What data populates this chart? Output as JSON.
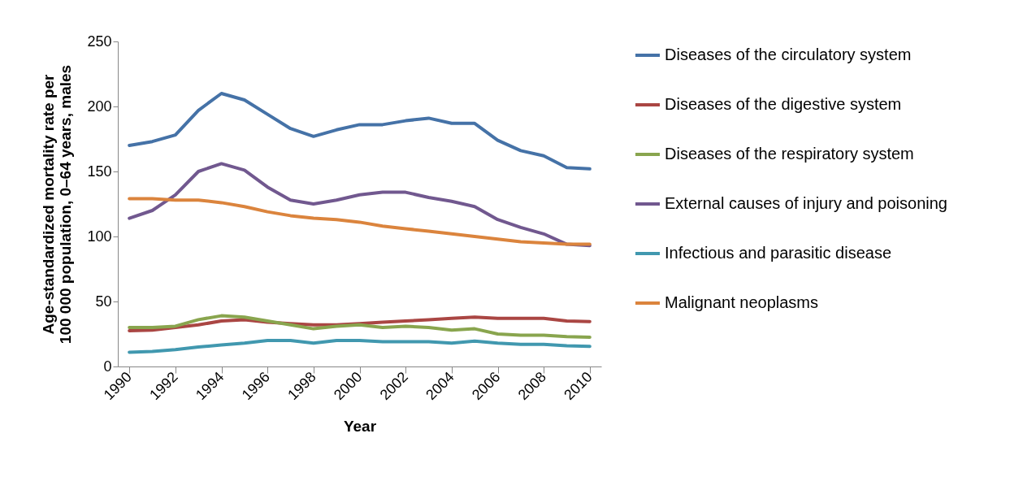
{
  "chart_data": {
    "type": "line",
    "xlabel": "Year",
    "ylabel": "Age-standardized mortality rate per 100 000 population, 0–64 years, males",
    "x": [
      1990,
      1991,
      1992,
      1993,
      1994,
      1995,
      1996,
      1997,
      1998,
      1999,
      2000,
      2001,
      2002,
      2003,
      2004,
      2005,
      2006,
      2007,
      2008,
      2009,
      2010
    ],
    "xlim": [
      1989.5,
      2010.5
    ],
    "xticks": [
      1990,
      1992,
      1994,
      1996,
      1998,
      2000,
      2002,
      2004,
      2006,
      2008,
      2010
    ],
    "ylim": [
      0,
      250
    ],
    "yticks": [
      0,
      50,
      100,
      150,
      200,
      250
    ],
    "grid": false,
    "legend": "right",
    "marker": "none",
    "line_style": "solid",
    "series": [
      {
        "name": "Diseases of the circulatory system",
        "color": "#4572a7",
        "values": [
          170,
          173,
          178,
          197,
          210,
          205,
          194,
          183,
          177,
          182,
          186,
          186,
          189,
          191,
          187,
          187,
          174,
          166,
          162,
          153,
          152
        ]
      },
      {
        "name": "Diseases of the digestive system",
        "color": "#aa4643",
        "values": [
          27.5,
          28,
          30,
          32,
          35,
          36,
          34,
          33,
          32,
          32,
          33,
          34,
          35,
          36,
          37,
          38,
          37,
          37,
          37,
          35,
          34.5
        ]
      },
      {
        "name": "Diseases of the respiratory system",
        "color": "#89a54e",
        "values": [
          30,
          30,
          31,
          36,
          39,
          38,
          35,
          32,
          29,
          31,
          32,
          30,
          31,
          30,
          28,
          29,
          25,
          24,
          24,
          23,
          22.5
        ]
      },
      {
        "name": "External causes of injury and poisoning",
        "color": "#71588f",
        "values": [
          114,
          120,
          132,
          150,
          156,
          151,
          138,
          128,
          125,
          128,
          132,
          134,
          134,
          130,
          127,
          123,
          113,
          107,
          102,
          94,
          93
        ]
      },
      {
        "name": "Infectious and parasitic disease",
        "color": "#4198af",
        "values": [
          11,
          11.5,
          13,
          15,
          16.5,
          18,
          20,
          20,
          18,
          20,
          20,
          19,
          19,
          19,
          18,
          19.5,
          18,
          17,
          17,
          16,
          15.5
        ]
      },
      {
        "name": "Malignant neoplasms",
        "color": "#db843d",
        "values": [
          129,
          129,
          128,
          128,
          126,
          123,
          119,
          116,
          114,
          113,
          111,
          108,
          106,
          104,
          102,
          100,
          98,
          96,
          95,
          94,
          94
        ]
      }
    ]
  }
}
